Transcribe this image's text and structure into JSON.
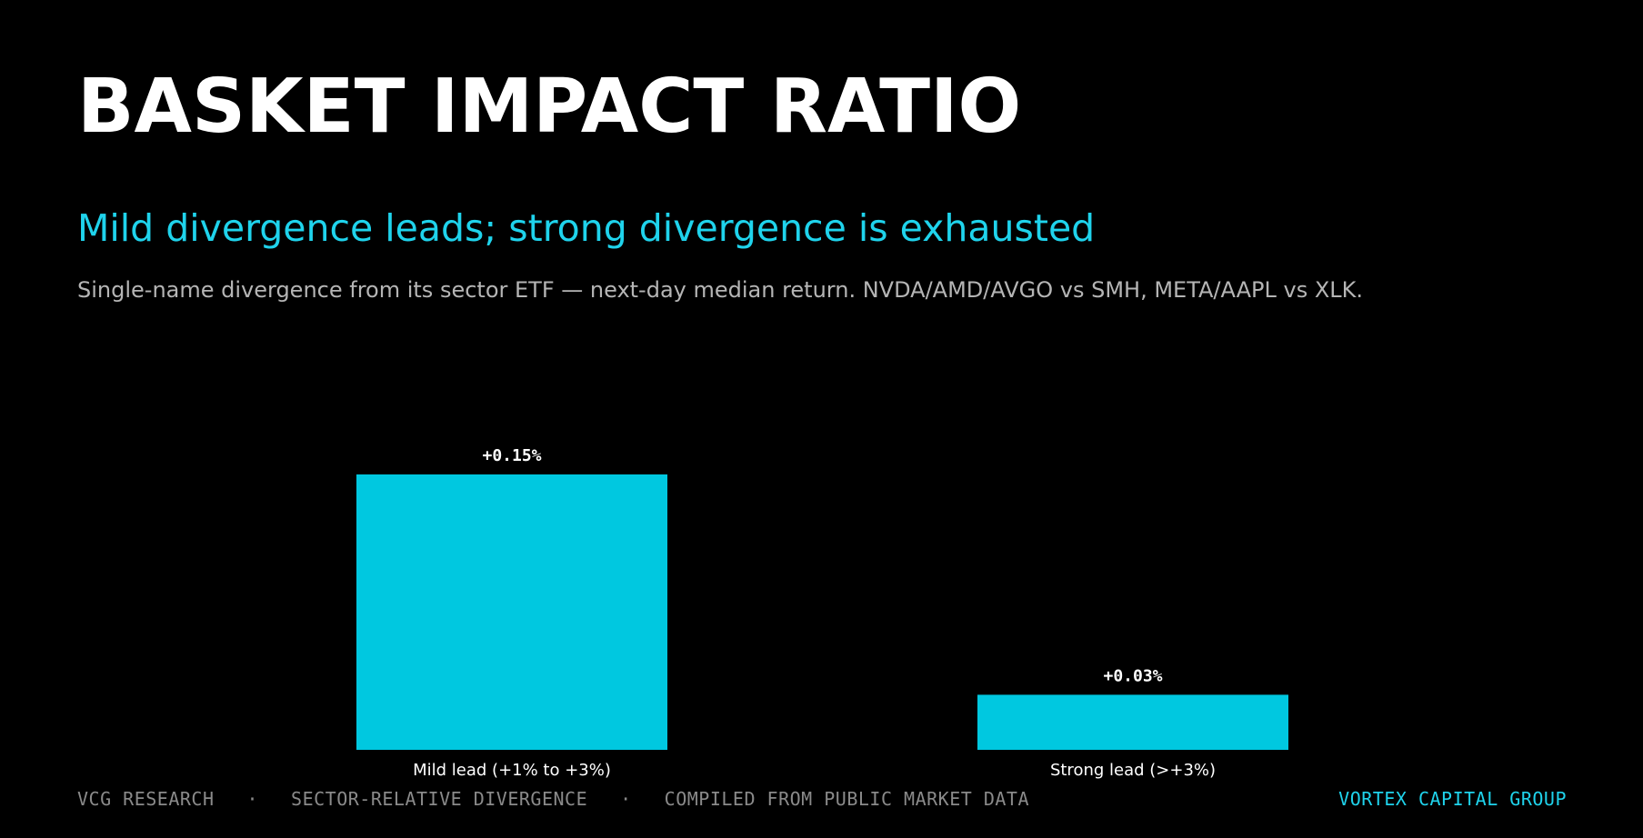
{
  "header": {
    "title": "BASKET IMPACT RATIO",
    "subtitle": "Mild divergence leads; strong divergence is exhausted",
    "description": "Single-name divergence from its sector ETF — next-day median return. NVDA/AMD/AVGO vs SMH, META/AAPL vs XLK."
  },
  "chart_data": {
    "type": "bar",
    "categories": [
      "Mild lead (+1% to +3%)",
      "Strong lead (>+3%)"
    ],
    "values": [
      0.15,
      0.03
    ],
    "data_labels": [
      "+0.15%",
      "+0.03%"
    ],
    "unit": "%",
    "ylim": [
      0,
      0.15
    ],
    "grid": false,
    "bar_color": "#00c8e0"
  },
  "footer": {
    "left_items": [
      "VCG RESEARCH",
      "SECTOR-RELATIVE DIVERGENCE",
      "COMPILED FROM PUBLIC MARKET DATA"
    ],
    "separator": "·",
    "brand": "VORTEX CAPITAL GROUP"
  },
  "colors": {
    "background": "#000000",
    "accent": "#1fd3ec",
    "bar": "#00c8e0",
    "muted": "#8a8a8a"
  }
}
